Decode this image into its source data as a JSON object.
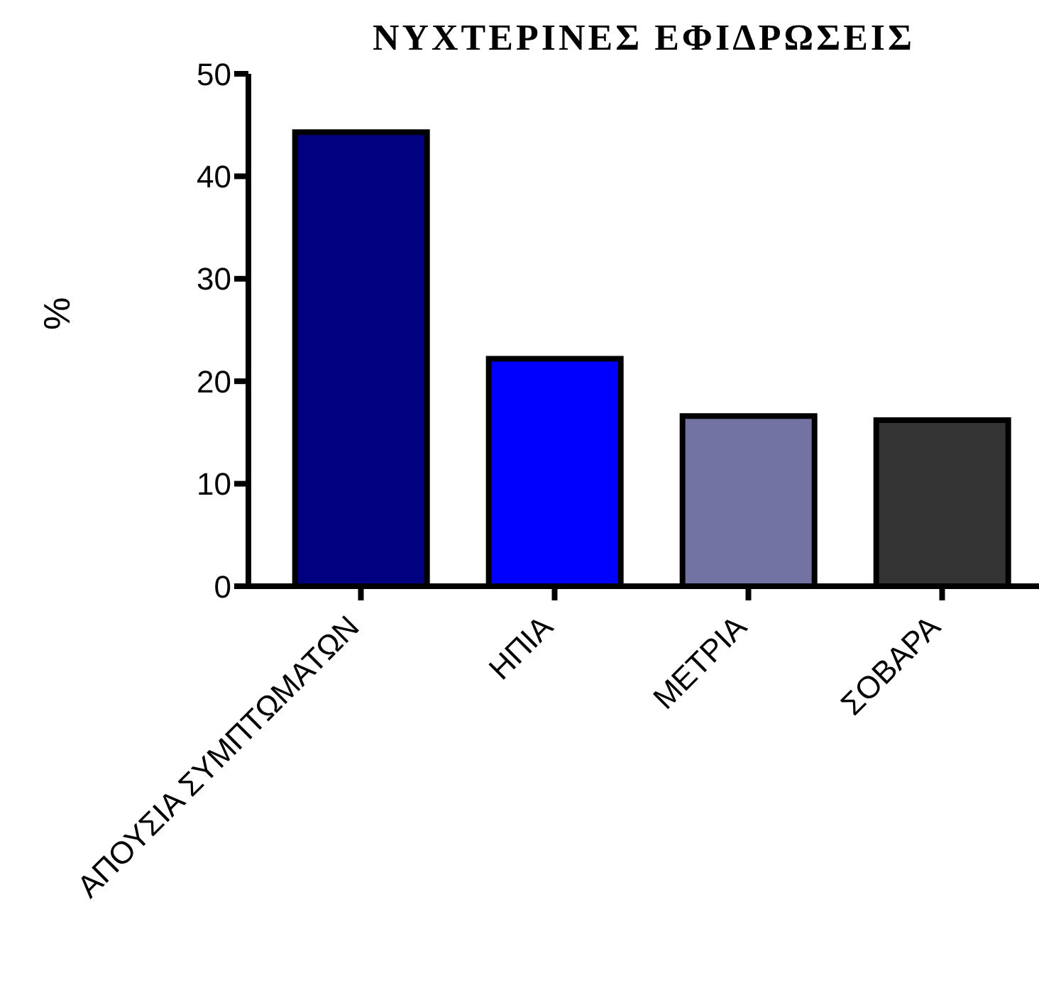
{
  "chart_data": {
    "type": "bar",
    "title": "ΝΥΧΤΕΡΙΝΕΣ ΕΦΙΔΡΩΣΕΙΣ",
    "ylabel": "%",
    "categories": [
      "ΑΠΟΥΣΙΑ ΣΥΜΠΤΩΜΑΤΩΝ",
      "ΗΠΙΑ",
      "ΜΕΤΡΙΑ",
      "ΣΟΒΑΡΑ"
    ],
    "values": [
      44.3,
      22.2,
      16.6,
      16.2
    ],
    "colors": [
      "#000080",
      "#0000ff",
      "#7373a3",
      "#333333"
    ],
    "ylim": [
      0,
      50
    ],
    "yticks": [
      0,
      10,
      20,
      30,
      40,
      50
    ],
    "grid": false
  }
}
